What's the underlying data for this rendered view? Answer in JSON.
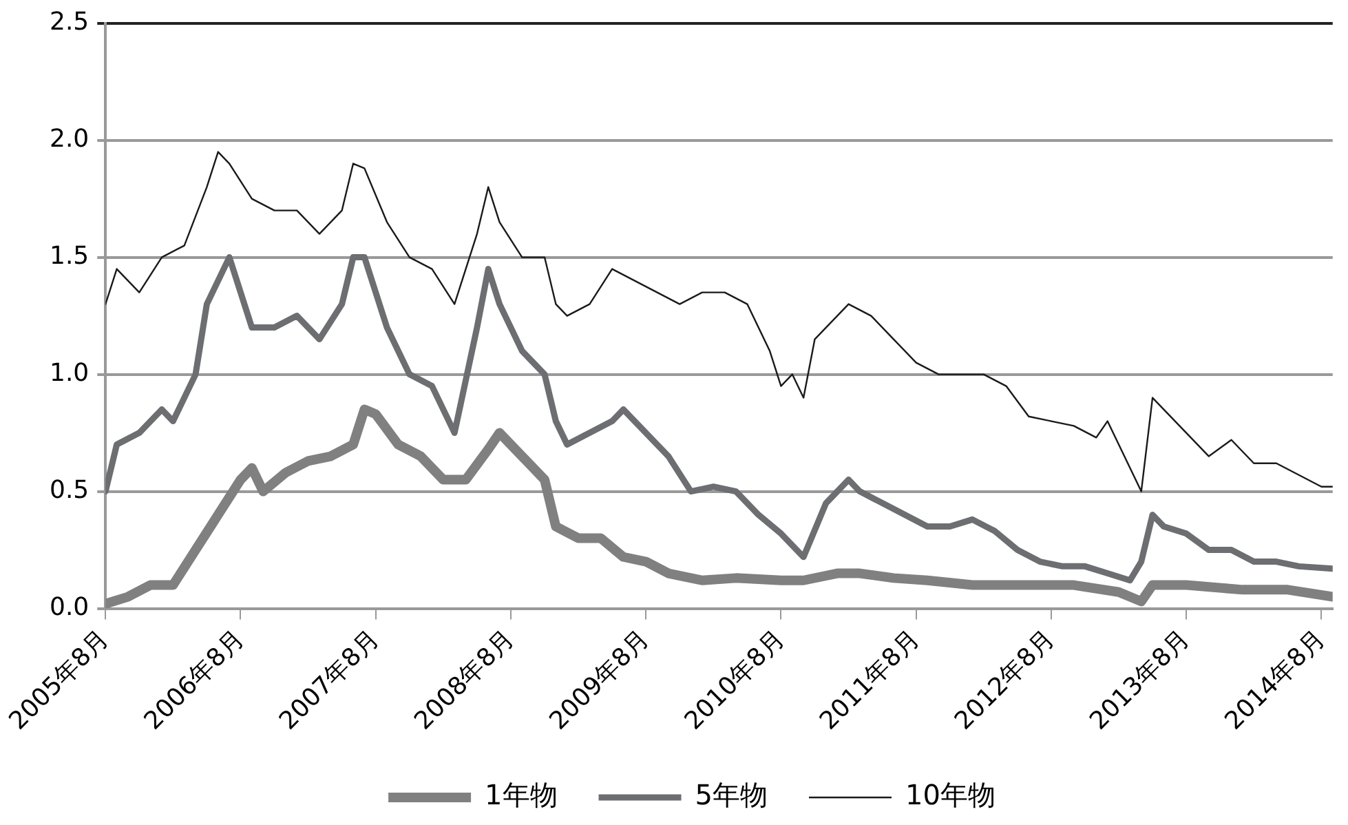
{
  "chart_data": {
    "type": "line",
    "legend": "bottom",
    "grid": "y",
    "marker": "none",
    "line_style": "solid",
    "xlim": [
      "2005-08",
      "2014-09"
    ],
    "xticks": [
      {
        "value": "2005-08",
        "label": "2005年8月"
      },
      {
        "value": "2006-08",
        "label": "2006年8月"
      },
      {
        "value": "2007-08",
        "label": "2007年8月"
      },
      {
        "value": "2008-08",
        "label": "2008年8月"
      },
      {
        "value": "2009-08",
        "label": "2009年8月"
      },
      {
        "value": "2010-08",
        "label": "2010年8月"
      },
      {
        "value": "2011-08",
        "label": "2011年8月"
      },
      {
        "value": "2012-08",
        "label": "2012年8月"
      },
      {
        "value": "2013-08",
        "label": "2013年8月"
      },
      {
        "value": "2014-08",
        "label": "2014年8月"
      }
    ],
    "ylim": [
      0,
      2.5
    ],
    "yticks": [
      {
        "value": 0,
        "label": "0.0"
      },
      {
        "value": 0.5,
        "label": "0.5"
      },
      {
        "value": 1,
        "label": "1.0"
      },
      {
        "value": 1.5,
        "label": "1.5"
      },
      {
        "value": 2,
        "label": "2.0"
      },
      {
        "value": 2.5,
        "label": "2.5"
      }
    ],
    "series": [
      {
        "name": "1年物",
        "color": "#808080",
        "x": [
          "2005-08",
          "2005-10",
          "2005-12",
          "2006-02",
          "2006-04",
          "2006-06",
          "2006-08",
          "2006-09",
          "2006-10",
          "2006-12",
          "2007-02",
          "2007-04",
          "2007-06",
          "2007-07",
          "2007-08",
          "2007-10",
          "2007-12",
          "2008-02",
          "2008-04",
          "2008-06",
          "2008-07",
          "2008-09",
          "2008-11",
          "2008-12",
          "2009-02",
          "2009-04",
          "2009-06",
          "2009-08",
          "2009-10",
          "2010-01",
          "2010-04",
          "2010-08",
          "2010-10",
          "2011-01",
          "2011-03",
          "2011-06",
          "2011-09",
          "2012-01",
          "2012-06",
          "2012-10",
          "2013-02",
          "2013-04",
          "2013-05",
          "2013-08",
          "2014-01",
          "2014-05",
          "2014-09"
        ],
        "values": [
          0.02,
          0.05,
          0.1,
          0.1,
          0.25,
          0.4,
          0.55,
          0.6,
          0.5,
          0.58,
          0.63,
          0.65,
          0.7,
          0.85,
          0.83,
          0.7,
          0.65,
          0.55,
          0.55,
          0.68,
          0.75,
          0.65,
          0.55,
          0.35,
          0.3,
          0.3,
          0.22,
          0.2,
          0.15,
          0.12,
          0.13,
          0.12,
          0.12,
          0.15,
          0.15,
          0.13,
          0.12,
          0.1,
          0.1,
          0.1,
          0.07,
          0.03,
          0.1,
          0.1,
          0.08,
          0.08,
          0.05
        ]
      },
      {
        "name": "5年物",
        "color": "#6d6e71",
        "x": [
          "2005-08",
          "2005-09",
          "2005-11",
          "2006-01",
          "2006-02",
          "2006-04",
          "2006-05",
          "2006-06",
          "2006-07",
          "2006-08",
          "2006-09",
          "2006-11",
          "2007-01",
          "2007-03",
          "2007-05",
          "2007-06",
          "2007-07",
          "2007-09",
          "2007-11",
          "2008-01",
          "2008-03",
          "2008-05",
          "2008-06",
          "2008-07",
          "2008-09",
          "2008-11",
          "2008-12",
          "2009-01",
          "2009-03",
          "2009-05",
          "2009-06",
          "2009-08",
          "2009-10",
          "2009-12",
          "2010-02",
          "2010-04",
          "2010-06",
          "2010-08",
          "2010-10",
          "2010-12",
          "2011-02",
          "2011-03",
          "2011-05",
          "2011-07",
          "2011-09",
          "2011-11",
          "2012-01",
          "2012-03",
          "2012-05",
          "2012-07",
          "2012-09",
          "2012-11",
          "2013-01",
          "2013-03",
          "2013-04",
          "2013-05",
          "2013-06",
          "2013-08",
          "2013-10",
          "2013-12",
          "2014-02",
          "2014-04",
          "2014-06",
          "2014-09"
        ],
        "values": [
          0.5,
          0.7,
          0.75,
          0.85,
          0.8,
          1.0,
          1.3,
          1.4,
          1.5,
          1.35,
          1.2,
          1.2,
          1.25,
          1.15,
          1.3,
          1.5,
          1.5,
          1.2,
          1.0,
          0.95,
          0.75,
          1.2,
          1.45,
          1.3,
          1.1,
          1.0,
          0.8,
          0.7,
          0.75,
          0.8,
          0.85,
          0.75,
          0.65,
          0.5,
          0.52,
          0.5,
          0.4,
          0.32,
          0.22,
          0.45,
          0.55,
          0.5,
          0.45,
          0.4,
          0.35,
          0.35,
          0.38,
          0.33,
          0.25,
          0.2,
          0.18,
          0.18,
          0.15,
          0.12,
          0.2,
          0.4,
          0.35,
          0.32,
          0.25,
          0.25,
          0.2,
          0.2,
          0.18,
          0.17
        ]
      },
      {
        "name": "10年物",
        "color": "#1a1a1a",
        "x": [
          "2005-08",
          "2005-09",
          "2005-11",
          "2006-01",
          "2006-03",
          "2006-05",
          "2006-06",
          "2006-07",
          "2006-09",
          "2006-11",
          "2007-01",
          "2007-03",
          "2007-05",
          "2007-06",
          "2007-07",
          "2007-09",
          "2007-11",
          "2008-01",
          "2008-03",
          "2008-05",
          "2008-06",
          "2008-07",
          "2008-09",
          "2008-11",
          "2008-12",
          "2009-01",
          "2009-03",
          "2009-05",
          "2009-07",
          "2009-09",
          "2009-11",
          "2010-01",
          "2010-03",
          "2010-05",
          "2010-07",
          "2010-08",
          "2010-09",
          "2010-10",
          "2010-11",
          "2010-12",
          "2011-02",
          "2011-04",
          "2011-06",
          "2011-08",
          "2011-10",
          "2011-12",
          "2012-02",
          "2012-04",
          "2012-06",
          "2012-08",
          "2012-10",
          "2012-12",
          "2013-01",
          "2013-03",
          "2013-04",
          "2013-05",
          "2013-06",
          "2013-08",
          "2013-10",
          "2013-12",
          "2014-02",
          "2014-04",
          "2014-06",
          "2014-08",
          "2014-09"
        ],
        "values": [
          1.3,
          1.45,
          1.35,
          1.5,
          1.55,
          1.8,
          1.95,
          1.9,
          1.75,
          1.7,
          1.7,
          1.6,
          1.7,
          1.9,
          1.88,
          1.65,
          1.5,
          1.45,
          1.3,
          1.6,
          1.8,
          1.65,
          1.5,
          1.5,
          1.3,
          1.25,
          1.3,
          1.45,
          1.4,
          1.35,
          1.3,
          1.35,
          1.35,
          1.3,
          1.1,
          0.95,
          1.0,
          0.9,
          1.15,
          1.2,
          1.3,
          1.25,
          1.15,
          1.05,
          1.0,
          1.0,
          1.0,
          0.95,
          0.82,
          0.8,
          0.78,
          0.73,
          0.8,
          0.6,
          0.5,
          0.9,
          0.85,
          0.75,
          0.65,
          0.72,
          0.62,
          0.62,
          0.57,
          0.52,
          0.52
        ]
      }
    ]
  }
}
